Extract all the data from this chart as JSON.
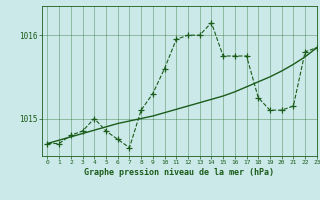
{
  "title": "Graphe pression niveau de la mer (hPa)",
  "bg_color": "#cce9e9",
  "line_color": "#1a5c1a",
  "hours": [
    0,
    1,
    2,
    3,
    4,
    5,
    6,
    7,
    8,
    9,
    10,
    11,
    12,
    13,
    14,
    15,
    16,
    17,
    18,
    19,
    20,
    21,
    22,
    23
  ],
  "pressure": [
    1014.7,
    1014.7,
    1014.8,
    1014.85,
    1015.0,
    1014.85,
    1014.75,
    1014.65,
    1015.1,
    1015.3,
    1015.6,
    1015.95,
    1016.0,
    1016.0,
    1016.15,
    1015.75,
    1015.75,
    1015.75,
    1015.25,
    1015.1,
    1015.1,
    1015.15,
    1015.8,
    1015.85
  ],
  "trend": [
    1014.7,
    1014.74,
    1014.78,
    1014.82,
    1014.86,
    1014.9,
    1014.94,
    1014.97,
    1015.0,
    1015.03,
    1015.07,
    1015.11,
    1015.15,
    1015.19,
    1015.23,
    1015.27,
    1015.32,
    1015.38,
    1015.44,
    1015.5,
    1015.57,
    1015.65,
    1015.74,
    1015.85
  ],
  "yticks": [
    1015,
    1016
  ],
  "ylim": [
    1014.55,
    1016.35
  ],
  "xlim": [
    -0.5,
    23
  ]
}
